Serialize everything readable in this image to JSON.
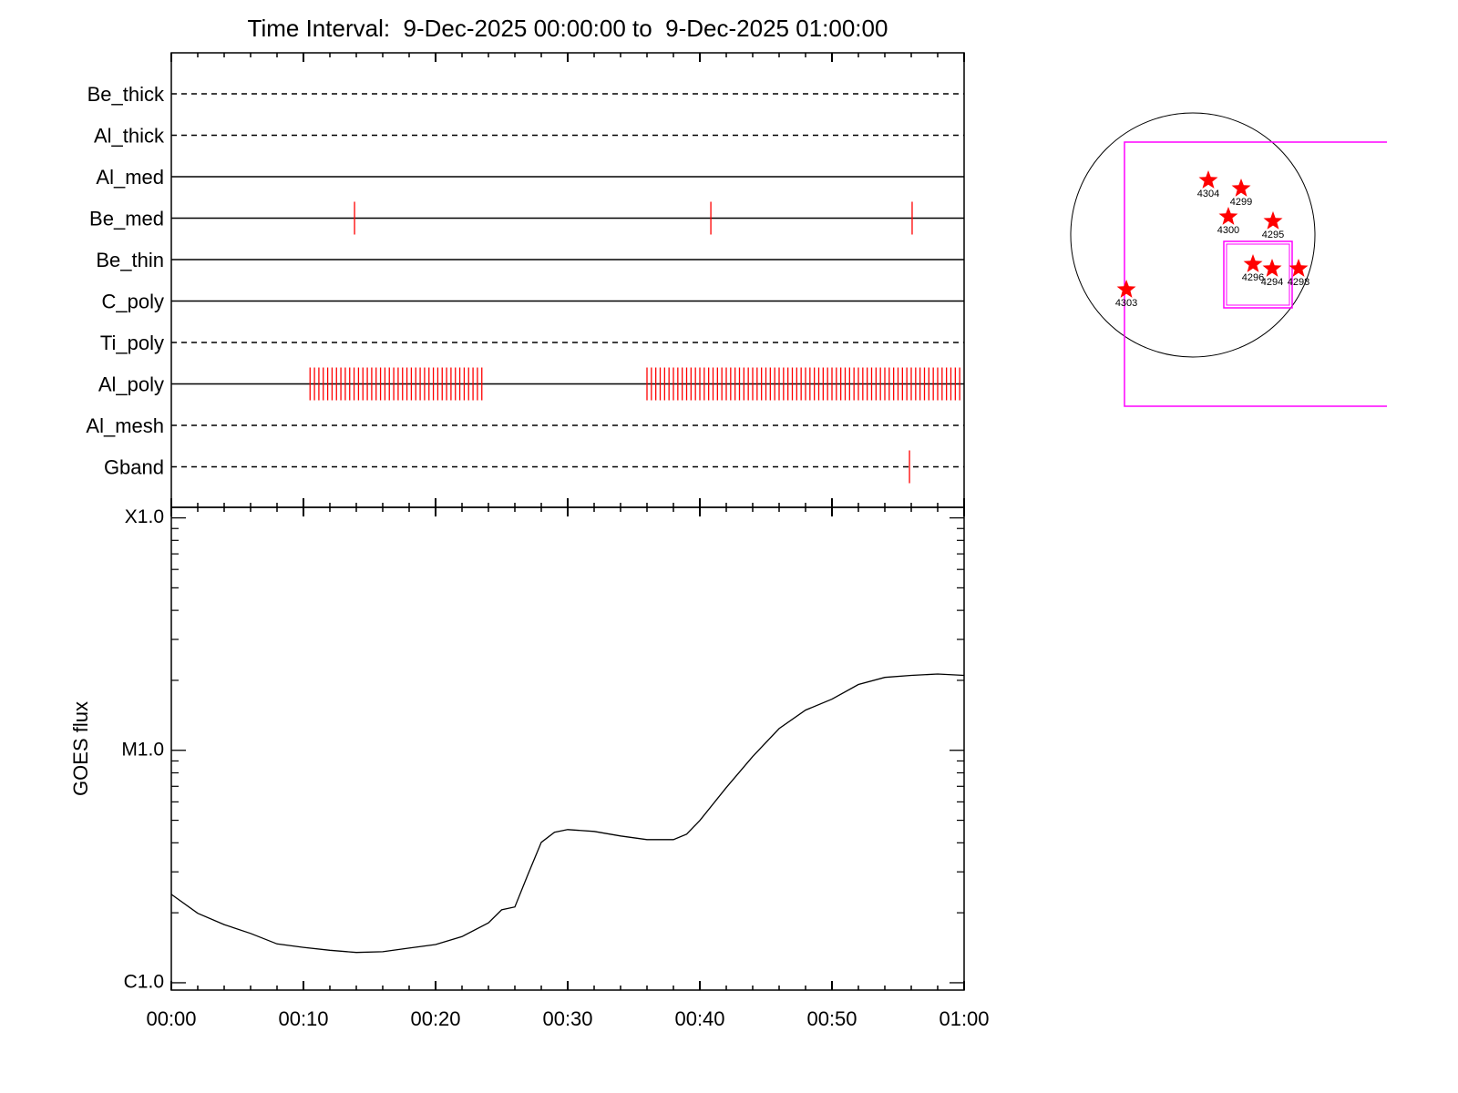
{
  "chart_data": [
    {
      "type": "event",
      "title": "Time Interval:  9-Dec-2025 00:00:00 to  9-Dec-2025 01:00:00",
      "color": "#ff0000",
      "channels": [
        {
          "name": "Be_thick",
          "linestyle": "dashed",
          "events": []
        },
        {
          "name": "Al_thick",
          "linestyle": "dashed",
          "events": []
        },
        {
          "name": "Al_med",
          "linestyle": "solid",
          "events": []
        },
        {
          "name": "Be_med",
          "linestyle": "solid",
          "events": [
            832,
            2450,
            3364
          ]
        },
        {
          "name": "Be_thin",
          "linestyle": "solid",
          "events": []
        },
        {
          "name": "C_poly",
          "linestyle": "solid",
          "events": []
        },
        {
          "name": "Ti_poly",
          "linestyle": "dashed",
          "events": []
        },
        {
          "name": "Al_poly",
          "linestyle": "solid",
          "events": [
            630,
            650,
            670,
            690,
            710,
            730,
            750,
            770,
            790,
            810,
            830,
            850,
            870,
            890,
            910,
            930,
            950,
            970,
            990,
            1010,
            1030,
            1050,
            1070,
            1090,
            1110,
            1130,
            1150,
            1170,
            1190,
            1210,
            1230,
            1250,
            1270,
            1290,
            1310,
            1330,
            1350,
            1370,
            1390,
            1410,
            2160,
            2180,
            2200,
            2220,
            2240,
            2260,
            2280,
            2300,
            2320,
            2340,
            2360,
            2380,
            2400,
            2420,
            2440,
            2460,
            2480,
            2500,
            2520,
            2540,
            2560,
            2580,
            2600,
            2620,
            2640,
            2660,
            2680,
            2700,
            2720,
            2740,
            2760,
            2780,
            2800,
            2820,
            2840,
            2860,
            2880,
            2900,
            2920,
            2940,
            2960,
            2980,
            3000,
            3020,
            3040,
            3060,
            3080,
            3100,
            3120,
            3140,
            3160,
            3180,
            3200,
            3220,
            3240,
            3260,
            3280,
            3300,
            3320,
            3340,
            3360,
            3380,
            3400,
            3420,
            3440,
            3460,
            3480,
            3500,
            3520,
            3540,
            3560,
            3580
          ]
        },
        {
          "name": "Al_mesh",
          "linestyle": "dashed",
          "events": []
        },
        {
          "name": "Gband",
          "linestyle": "dashed",
          "events": [
            3352
          ]
        }
      ]
    },
    {
      "type": "line",
      "ylabel": "GOES flux",
      "color": "#000000",
      "log_scale": true,
      "xlim": [
        0,
        3600
      ],
      "xticks": [
        {
          "value": 0,
          "label": "00:00"
        },
        {
          "value": 600,
          "label": "00:10"
        },
        {
          "value": 1200,
          "label": "00:20"
        },
        {
          "value": 1800,
          "label": "00:30"
        },
        {
          "value": 2400,
          "label": "00:40"
        },
        {
          "value": 3000,
          "label": "00:50"
        },
        {
          "value": 3600,
          "label": "01:00"
        }
      ],
      "xminorticks": [
        120,
        240,
        360,
        480,
        720,
        840,
        960,
        1080,
        1320,
        1440,
        1560,
        1680,
        1920,
        2040,
        2160,
        2280,
        2520,
        2640,
        2760,
        2880,
        3120,
        3240,
        3360,
        3480
      ],
      "ylim": [
        9.3e-07,
        0.000111
      ],
      "yticks": [
        {
          "value": 1e-06,
          "label": "C1.0"
        },
        {
          "value": 1e-05,
          "label": "M1.0"
        },
        {
          "value": 0.0001,
          "label": "X1.0"
        }
      ],
      "yminorticks": [
        2e-06,
        3e-06,
        4e-06,
        5e-06,
        6e-06,
        7e-06,
        8e-06,
        9e-06,
        2e-05,
        3e-05,
        4e-05,
        5e-05,
        6e-05,
        7e-05,
        8e-05,
        9e-05
      ],
      "x": [
        0,
        120,
        240,
        360,
        480,
        600,
        720,
        840,
        960,
        1080,
        1200,
        1320,
        1440,
        1500,
        1560,
        1620,
        1680,
        1740,
        1800,
        1920,
        2040,
        2160,
        2280,
        2340,
        2400,
        2520,
        2640,
        2760,
        2880,
        3000,
        3120,
        3240,
        3360,
        3480,
        3600
      ],
      "values": [
        2.4e-06,
        1.99e-06,
        1.78e-06,
        1.63e-06,
        1.47e-06,
        1.42e-06,
        1.38e-06,
        1.35e-06,
        1.36e-06,
        1.41e-06,
        1.46e-06,
        1.58e-06,
        1.81e-06,
        2.06e-06,
        2.12e-06,
        2.93e-06,
        4.02e-06,
        4.44e-06,
        4.56e-06,
        4.48e-06,
        4.28e-06,
        4.13e-06,
        4.13e-06,
        4.36e-06,
        4.99e-06,
        6.91e-06,
        9.4e-06,
        1.24e-05,
        1.49e-05,
        1.66e-05,
        1.92e-05,
        2.06e-05,
        2.1e-05,
        2.13e-05,
        2.1e-05
      ]
    },
    {
      "type": "scatter",
      "color": "#ff0000",
      "labels": [
        "4304",
        "4299",
        "4300",
        "4295",
        "4296",
        "4294",
        "4298",
        "4303"
      ],
      "x": [
        123,
        384,
        282,
        637,
        478,
        630,
        840,
        -528
      ],
      "values": [
        434,
        369,
        145,
        109,
        -232,
        -268,
        -268,
        -434
      ]
    }
  ]
}
